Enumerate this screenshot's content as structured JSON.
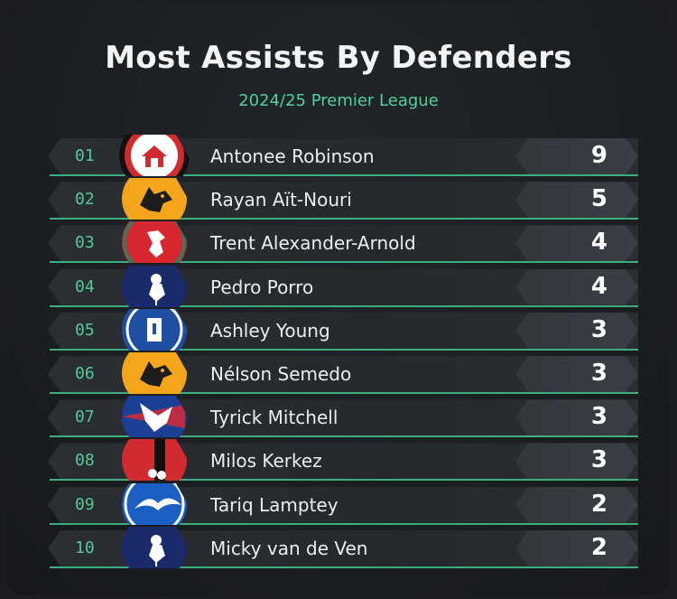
{
  "header": {
    "title": "Most Assists By Defenders",
    "subtitle": "2024/25 Premier League"
  },
  "chart_data": {
    "type": "table",
    "title": "Most Assists By Defenders",
    "subtitle": "2024/25 Premier League",
    "rows": [
      {
        "rank": "01",
        "player": "Antonee Robinson",
        "value": 9,
        "crest": "fulham-crest-icon",
        "colors": [
          "#d12b30",
          "#ffffff",
          "#111111"
        ]
      },
      {
        "rank": "02",
        "player": "Rayan Aït-Nouri",
        "value": 5,
        "crest": "wolves-crest-icon",
        "colors": [
          "#f4a51c",
          "#1d1d1d",
          "#1d1d1d"
        ]
      },
      {
        "rank": "03",
        "player": "Trent Alexander-Arnold",
        "value": 4,
        "crest": "liverpool-crest-icon",
        "colors": [
          "#d7262e",
          "#ffffff",
          "#0f8c6a"
        ]
      },
      {
        "rank": "04",
        "player": "Pedro Porro",
        "value": 4,
        "crest": "tottenham-crest-icon",
        "colors": [
          "#1a2a6a",
          "#ffffff",
          "#ffffff"
        ]
      },
      {
        "rank": "05",
        "player": "Ashley Young",
        "value": 3,
        "crest": "everton-crest-icon",
        "colors": [
          "#1f4fa3",
          "#ffffff",
          "#ffffff"
        ]
      },
      {
        "rank": "06",
        "player": "Nélson Semedo",
        "value": 3,
        "crest": "wolves-crest-icon",
        "colors": [
          "#f4a51c",
          "#1d1d1d",
          "#1d1d1d"
        ]
      },
      {
        "rank": "07",
        "player": "Tyrick Mitchell",
        "value": 3,
        "crest": "crystal-palace-crest-icon",
        "colors": [
          "#1b3f94",
          "#ffffff",
          "#d62a35"
        ]
      },
      {
        "rank": "08",
        "player": "Milos Kerkez",
        "value": 3,
        "crest": "bournemouth-crest-icon",
        "colors": [
          "#d12a2f",
          "#111111",
          "#ffffff"
        ]
      },
      {
        "rank": "09",
        "player": "Tariq Lamptey",
        "value": 2,
        "crest": "brighton-crest-icon",
        "colors": [
          "#1b5ec4",
          "#ffffff",
          "#ffffff"
        ]
      },
      {
        "rank": "10",
        "player": "Micky van de Ven",
        "value": 2,
        "crest": "tottenham-crest-icon",
        "colors": [
          "#1a2a6a",
          "#ffffff",
          "#ffffff"
        ]
      }
    ]
  }
}
